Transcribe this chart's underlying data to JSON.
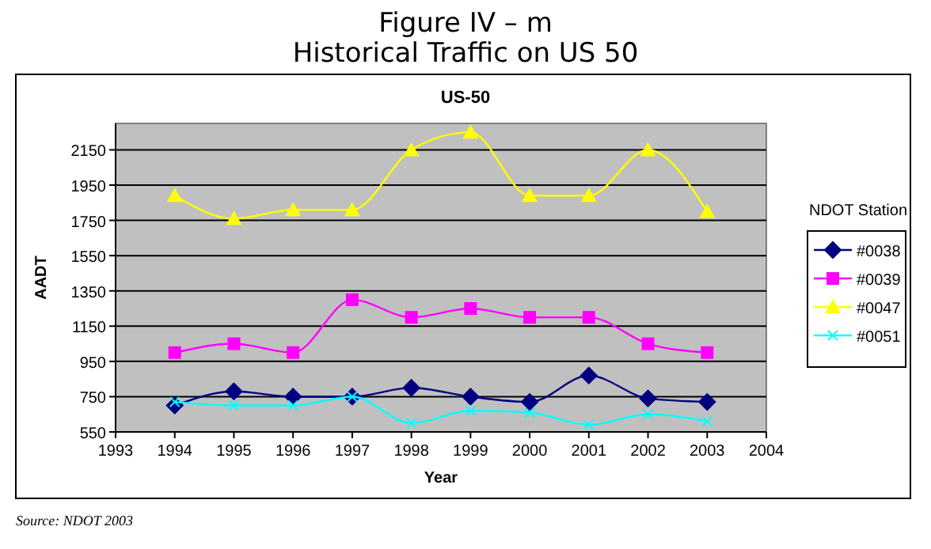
{
  "chart_data": {
    "type": "line",
    "title": "Figure IV – m\nHistorical Traffic on US 50",
    "subtitle": "US-50",
    "xlabel": "Year",
    "ylabel": "AADT",
    "legend_title": "NDOT Station",
    "legend": "right",
    "grid": "y",
    "x": [
      1994,
      1995,
      1996,
      1997,
      1998,
      1999,
      2000,
      2001,
      2002,
      2003
    ],
    "xlim": [
      1993,
      2004
    ],
    "xticks": [
      1993,
      1994,
      1995,
      1996,
      1997,
      1998,
      1999,
      2000,
      2001,
      2002,
      2003,
      2004
    ],
    "ylim": [
      550,
      2300
    ],
    "yticks": [
      550,
      750,
      950,
      1150,
      1350,
      1550,
      1750,
      1950,
      2150
    ],
    "series": [
      {
        "name": "#0038",
        "color": "#000080",
        "marker": "diamond",
        "values": [
          700,
          780,
          750,
          750,
          800,
          750,
          720,
          870,
          740,
          720
        ]
      },
      {
        "name": "#0039",
        "color": "#ff00ff",
        "marker": "square",
        "values": [
          1000,
          1050,
          1000,
          1300,
          1200,
          1250,
          1200,
          1200,
          1050,
          1000
        ]
      },
      {
        "name": "#0047",
        "color": "#ffff00",
        "marker": "triangle",
        "values": [
          1890,
          1760,
          1810,
          1810,
          2150,
          2250,
          1890,
          1890,
          2150,
          1800
        ]
      },
      {
        "name": "#0051",
        "color": "#00ffff",
        "marker": "cross",
        "values": [
          720,
          700,
          700,
          750,
          600,
          670,
          660,
          590,
          650,
          610
        ]
      }
    ],
    "annotations": [
      "Source: NDOT 2003"
    ]
  }
}
